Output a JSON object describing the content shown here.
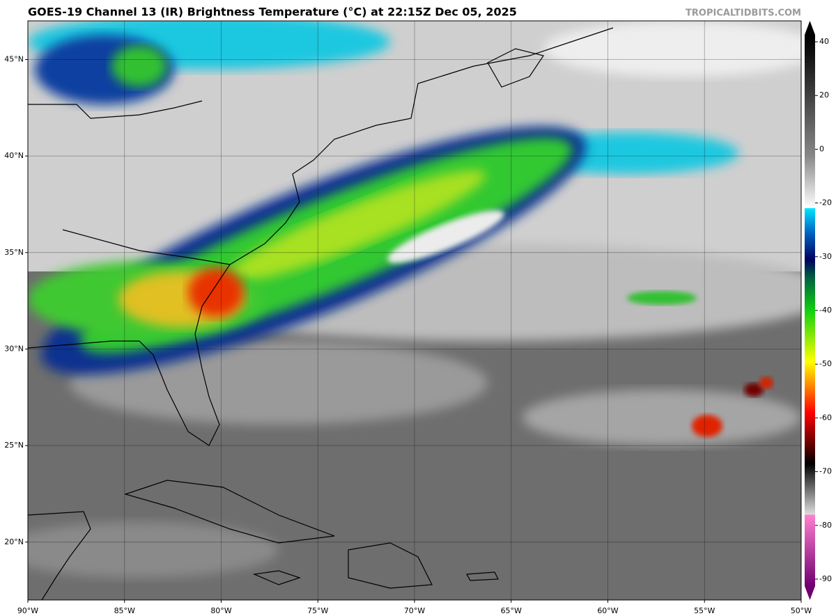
{
  "title": "GOES-19 Channel 13 (IR) Brightness Temperature (°C) at 22:15Z Dec 05, 2025",
  "credit": "TROPICALTIDBITS.COM",
  "map": {
    "xlim": [
      -90,
      -50
    ],
    "ylim": [
      17,
      47
    ],
    "xticks": [
      {
        "value": -90,
        "label": "90°W"
      },
      {
        "value": -85,
        "label": "85°W"
      },
      {
        "value": -80,
        "label": "80°W"
      },
      {
        "value": -75,
        "label": "75°W"
      },
      {
        "value": -70,
        "label": "70°W"
      },
      {
        "value": -65,
        "label": "65°W"
      },
      {
        "value": -60,
        "label": "60°W"
      },
      {
        "value": -55,
        "label": "55°W"
      },
      {
        "value": -50,
        "label": "50°W"
      }
    ],
    "yticks": [
      {
        "value": 20,
        "label": "20°N"
      },
      {
        "value": 25,
        "label": "25°N"
      },
      {
        "value": 30,
        "label": "30°N"
      },
      {
        "value": 35,
        "label": "35°N"
      },
      {
        "value": 40,
        "label": "40°N"
      },
      {
        "value": 45,
        "label": "45°N"
      }
    ],
    "grid": true
  },
  "colorbar": {
    "ticks": [
      40,
      20,
      0,
      -20,
      -30,
      -40,
      -50,
      -60,
      -70,
      -80,
      -90
    ]
  }
}
